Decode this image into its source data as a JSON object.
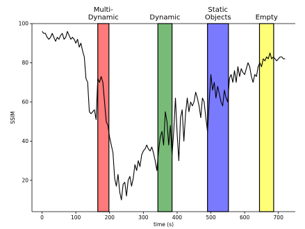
{
  "chart_data": {
    "type": "line",
    "xlabel": "time (s)",
    "ylabel": "SSIM",
    "xlim": [
      -30,
      750
    ],
    "ylim": [
      4,
      100
    ],
    "xticks": [
      0,
      100,
      200,
      300,
      400,
      500,
      600,
      700
    ],
    "yticks": [
      20,
      40,
      60,
      80,
      100
    ],
    "grid": false,
    "bands": [
      {
        "label": [
          "Multi-",
          "Dynamic"
        ],
        "x_start": 165,
        "x_end": 198,
        "color": "#ff7a7a"
      },
      {
        "label": [
          "Dynamic"
        ],
        "x_start": 343,
        "x_end": 385,
        "color": "#77bb77"
      },
      {
        "label": [
          "Static",
          "Objects"
        ],
        "x_start": 490,
        "x_end": 552,
        "color": "#7a7aff"
      },
      {
        "label": [
          "Empty"
        ],
        "x_start": 644,
        "x_end": 686,
        "color": "#ffff77"
      }
    ],
    "series": [
      {
        "color": "#000000",
        "x": [
          0,
          5,
          10,
          15,
          20,
          25,
          30,
          35,
          40,
          45,
          50,
          55,
          60,
          65,
          70,
          75,
          80,
          85,
          90,
          95,
          100,
          105,
          110,
          115,
          120,
          125,
          130,
          135,
          140,
          145,
          150,
          155,
          160,
          165,
          170,
          175,
          180,
          185,
          190,
          195,
          200,
          205,
          210,
          215,
          220,
          225,
          230,
          235,
          240,
          245,
          250,
          255,
          260,
          265,
          270,
          275,
          280,
          285,
          290,
          295,
          300,
          305,
          310,
          315,
          320,
          325,
          330,
          335,
          340,
          345,
          350,
          355,
          360,
          365,
          370,
          375,
          380,
          385,
          390,
          395,
          400,
          405,
          410,
          415,
          420,
          425,
          430,
          435,
          440,
          445,
          450,
          455,
          460,
          465,
          470,
          475,
          480,
          485,
          490,
          495,
          500,
          505,
          510,
          515,
          520,
          525,
          530,
          535,
          540,
          545,
          550,
          555,
          560,
          565,
          570,
          575,
          580,
          585,
          590,
          595,
          600,
          605,
          610,
          615,
          620,
          625,
          630,
          635,
          640,
          645,
          650,
          655,
          660,
          665,
          670,
          675,
          680,
          685,
          690,
          695,
          700,
          705,
          710,
          715,
          720
        ],
        "y": [
          96,
          95,
          95,
          93,
          92,
          93,
          95,
          93,
          91,
          93,
          92,
          94,
          95,
          92,
          93,
          96,
          94,
          92,
          93,
          92,
          90,
          92,
          88,
          90,
          86,
          83,
          72,
          70,
          55,
          54,
          55,
          56,
          51,
          72,
          70,
          73,
          70,
          60,
          50,
          48,
          42,
          38,
          34,
          21,
          17,
          23,
          14,
          10,
          18,
          19,
          12,
          20,
          22,
          17,
          21,
          28,
          25,
          30,
          27,
          33,
          35,
          36,
          38,
          36,
          35,
          37,
          34,
          30,
          25,
          35,
          42,
          45,
          38,
          55,
          50,
          38,
          48,
          33,
          45,
          62,
          44,
          30,
          52,
          56,
          40,
          54,
          62,
          55,
          60,
          58,
          60,
          65,
          62,
          58,
          52,
          62,
          60,
          52,
          45,
          60,
          74,
          66,
          70,
          62,
          68,
          64,
          60,
          58,
          66,
          62,
          60,
          72,
          74,
          70,
          76,
          70,
          78,
          73,
          77,
          75,
          74,
          77,
          80,
          78,
          73,
          70,
          74,
          73,
          78,
          80,
          78,
          82,
          81,
          83,
          82,
          85,
          82,
          83,
          82,
          81,
          82,
          83,
          83,
          82,
          82
        ]
      }
    ]
  }
}
